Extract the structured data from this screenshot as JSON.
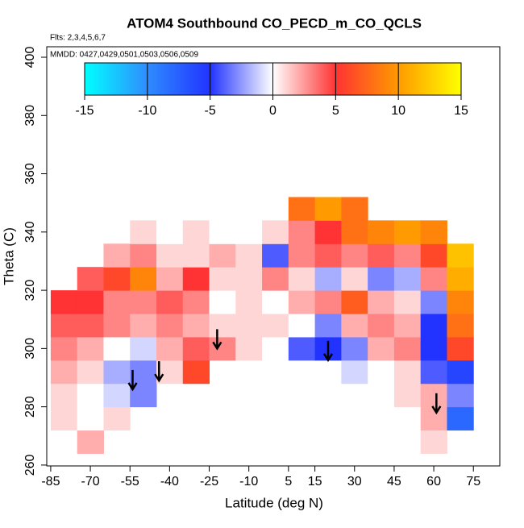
{
  "chart_data": {
    "type": "heatmap",
    "title": "ATOM4 Southbound CO_PECD_m_CO_QCLS",
    "subtitle": "Flts: 2,3,4,5,6,7",
    "annotation": "MMDD: 0427,0429,0501,0503,0506,0509",
    "xlabel": "Latitude (deg N)",
    "ylabel": "Theta (C)",
    "xlim": [
      -86.5,
      85
    ],
    "ylim": [
      259.7,
      403.6
    ],
    "xticks": [
      -85,
      -70,
      -55,
      -40,
      -25,
      -10,
      5,
      15,
      30,
      45,
      60,
      75
    ],
    "yticks": [
      260,
      280,
      300,
      320,
      340,
      360,
      380,
      400
    ],
    "x": [
      -80,
      -70,
      -60,
      -50,
      -40,
      -30,
      -20,
      -10,
      0,
      10,
      20,
      30,
      40,
      50,
      60,
      70
    ],
    "y": [
      268,
      276,
      284,
      292,
      300,
      308,
      316,
      324,
      332,
      340,
      348
    ],
    "z": [
      [
        null,
        2,
        null,
        null,
        null,
        null,
        null,
        null,
        null,
        null,
        null,
        null,
        null,
        null,
        1,
        null
      ],
      [
        1,
        0,
        1,
        null,
        null,
        null,
        null,
        null,
        null,
        null,
        null,
        null,
        null,
        0,
        2,
        -8
      ],
      [
        1,
        0,
        -1,
        -3,
        null,
        null,
        null,
        null,
        null,
        null,
        null,
        null,
        0,
        1,
        2,
        -3
      ],
      [
        2,
        1,
        -2,
        -3,
        1,
        6,
        null,
        null,
        null,
        null,
        null,
        -1,
        0,
        1,
        -4,
        -6
      ],
      [
        3,
        2,
        0,
        -1,
        2,
        4,
        3,
        1,
        0,
        -4,
        -5,
        -3,
        2,
        3,
        -5,
        6
      ],
      [
        4,
        4,
        3,
        2,
        3,
        2,
        1,
        1,
        1,
        0,
        -3,
        2,
        3,
        2,
        -5,
        8
      ],
      [
        5,
        5,
        3,
        3,
        4,
        3,
        0,
        1,
        0,
        2,
        3,
        7,
        2,
        1,
        -3,
        9
      ],
      [
        null,
        4,
        6,
        9,
        2,
        5,
        1,
        1,
        3,
        1,
        -2,
        1,
        -3,
        -2,
        3,
        11
      ],
      [
        null,
        null,
        2,
        3,
        1,
        1,
        2,
        1,
        -4,
        3,
        4,
        3,
        4,
        3,
        6,
        12
      ],
      [
        null,
        null,
        null,
        1,
        0,
        1,
        0,
        0,
        1,
        3,
        5,
        8,
        9,
        10,
        9,
        null
      ],
      [
        null,
        null,
        null,
        null,
        null,
        null,
        null,
        null,
        null,
        8,
        10,
        8,
        null,
        null,
        null,
        null
      ]
    ],
    "colorbar": {
      "lim": [
        -15,
        15
      ],
      "ticks": [
        -15,
        -10,
        -5,
        0,
        5,
        10,
        15
      ],
      "colors": [
        "#00ffff",
        "#2f8cff",
        "#2233ff",
        "#ffffff",
        "#ff3333",
        "#ff9a00",
        "#ffff00"
      ]
    },
    "arrows": {
      "x": [
        -54,
        -44,
        -22,
        20,
        61
      ],
      "y": [
        286,
        289,
        300,
        296,
        278
      ]
    }
  }
}
